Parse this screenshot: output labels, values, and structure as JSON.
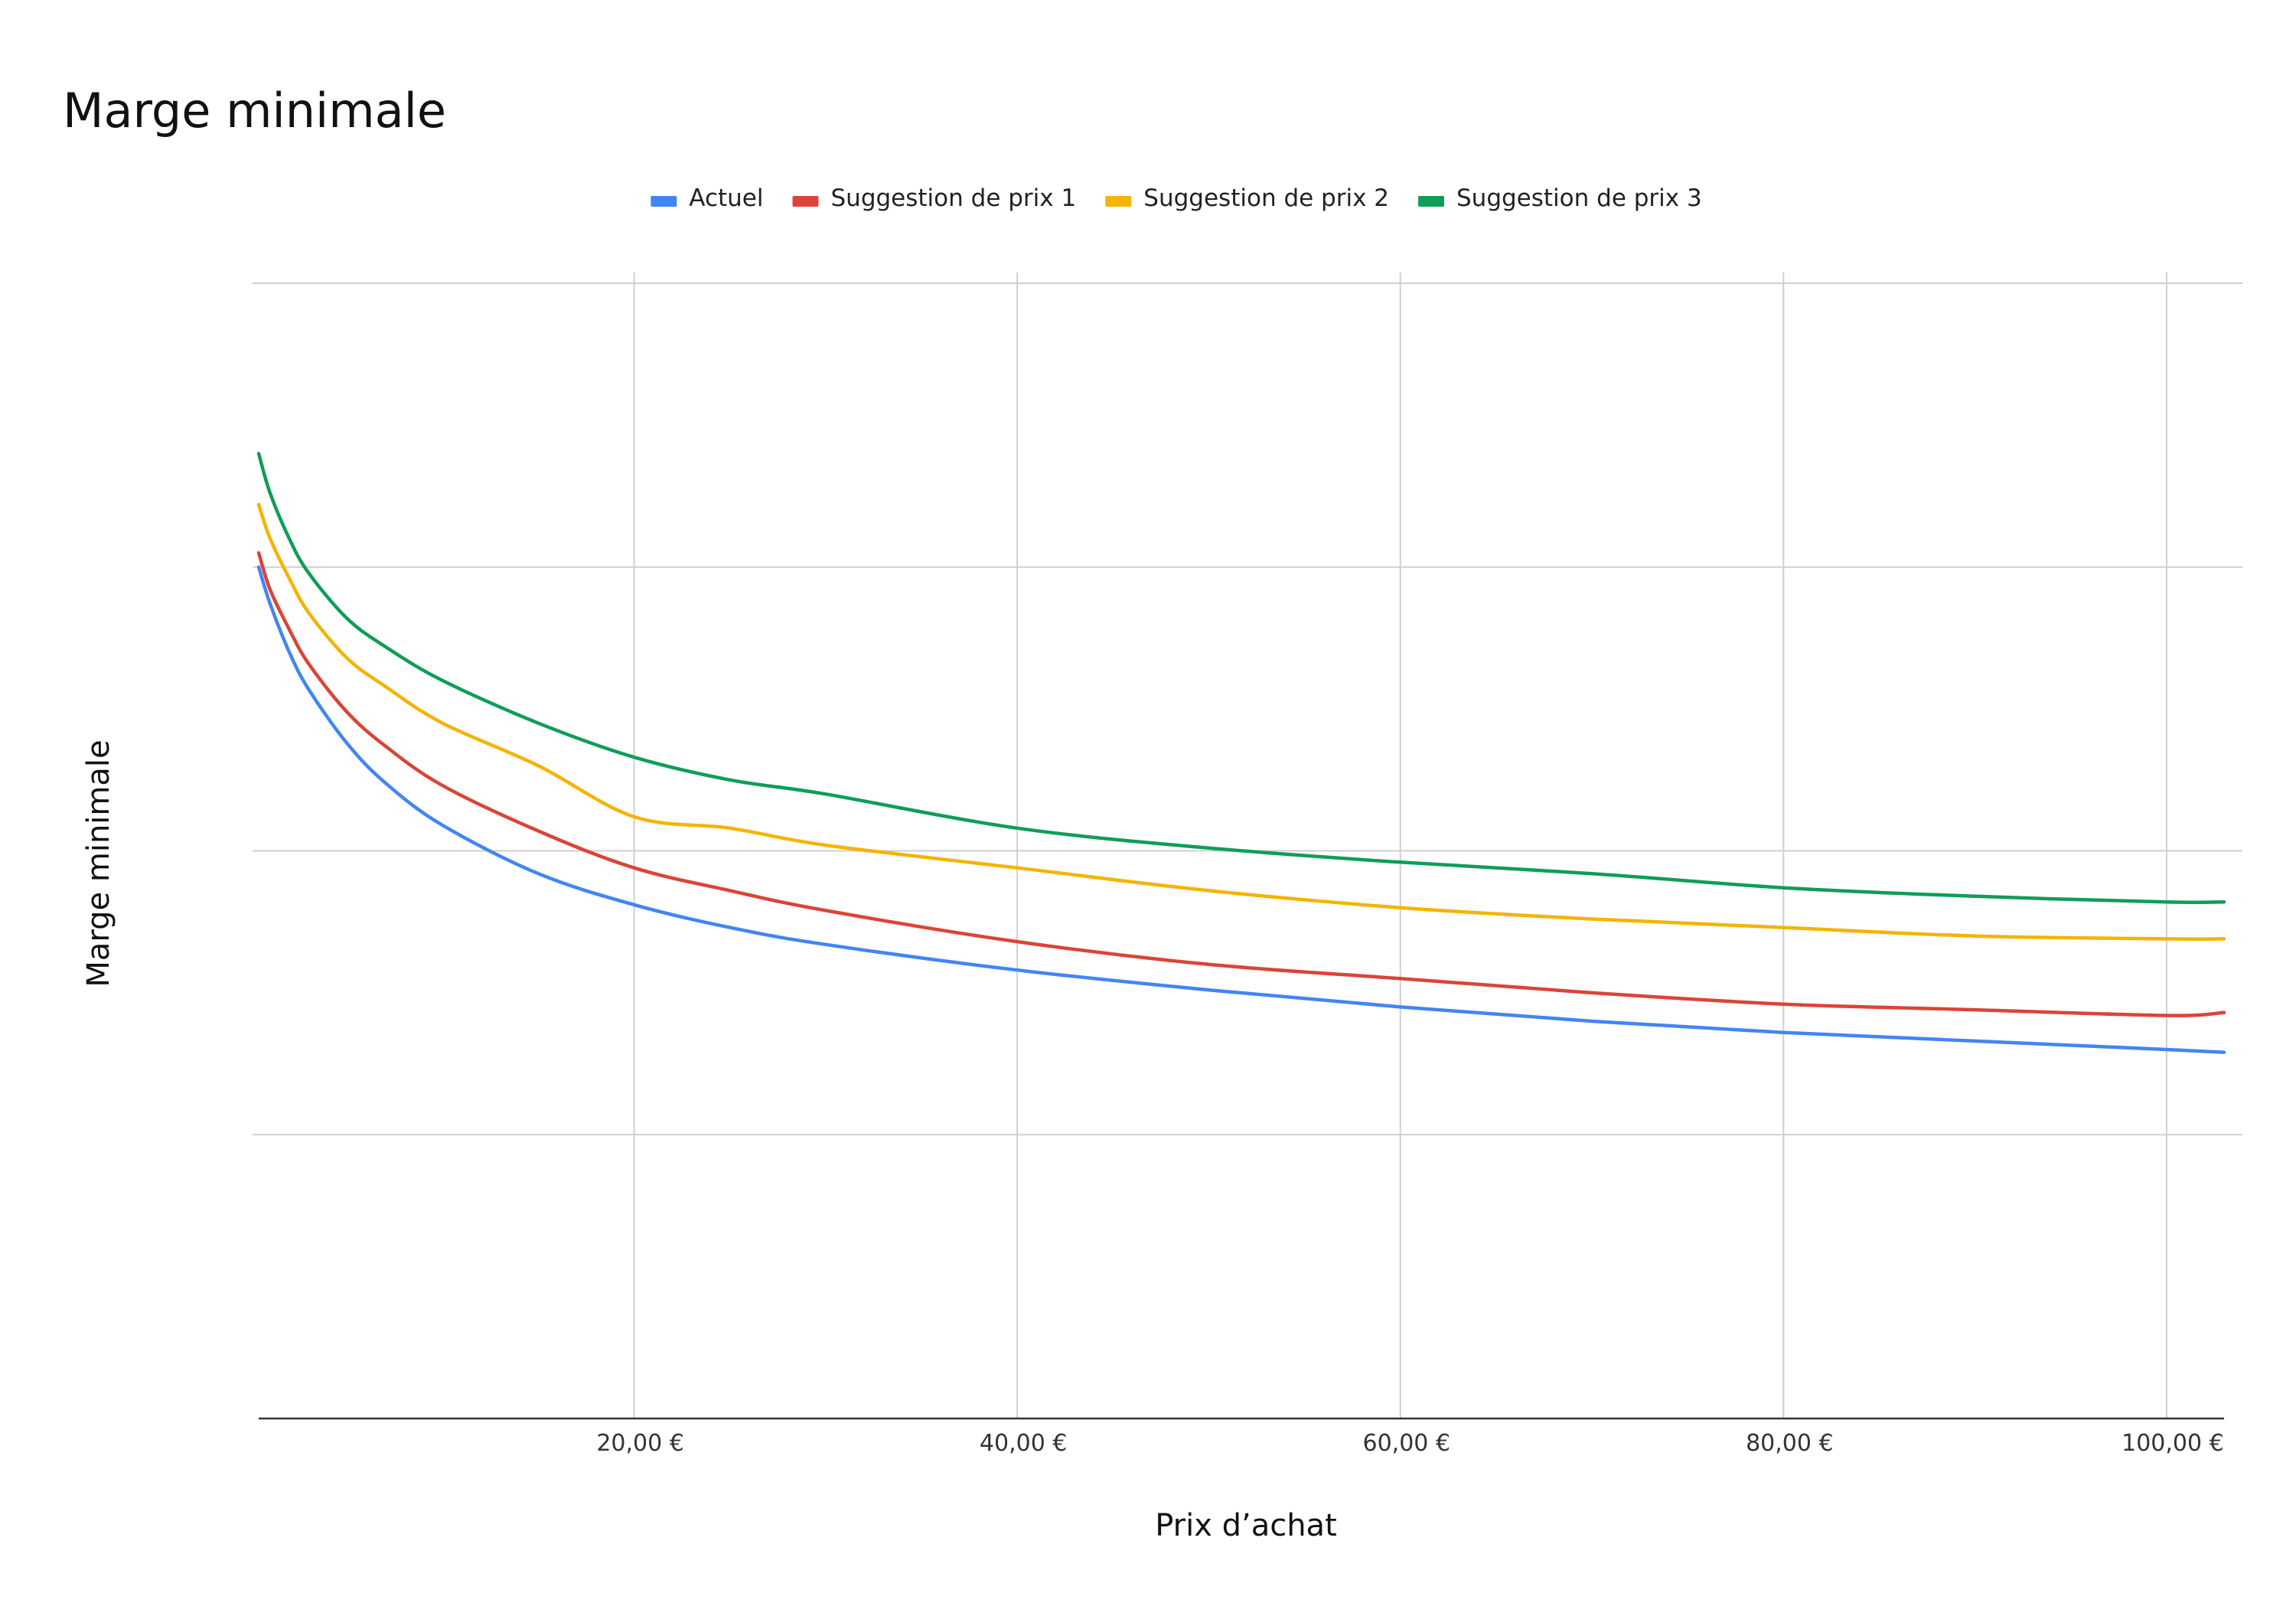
{
  "chart_data": {
    "type": "line",
    "title": "Marge minimale",
    "xlabel": "Prix d’achat",
    "ylabel": "Marge minimale",
    "x_tick_labels": [
      "20,00 €",
      "40,00 €",
      "60,00 €",
      "80,00 €",
      "100,00 €"
    ],
    "x_ticks": [
      20,
      40,
      60,
      80,
      100
    ],
    "xlim": [
      0.4,
      103
    ],
    "ylim": [
      0,
      4
    ],
    "y_gridlines": [
      1,
      2,
      3,
      4
    ],
    "y_tick_labels_shown": false,
    "grid": true,
    "legend_position": "top-center",
    "x": [
      0.4,
      1,
      2,
      3,
      5,
      7,
      10,
      15,
      20,
      25,
      30,
      40,
      50,
      60,
      70,
      80,
      90,
      100,
      103
    ],
    "series": [
      {
        "name": "Actuel",
        "color": "#4285F4",
        "values": [
          3.0,
          2.87,
          2.7,
          2.57,
          2.38,
          2.24,
          2.09,
          1.92,
          1.81,
          1.73,
          1.67,
          1.58,
          1.51,
          1.45,
          1.4,
          1.36,
          1.33,
          1.3,
          1.29
        ]
      },
      {
        "name": "Suggestion de prix 1",
        "color": "#DB4437",
        "values": [
          3.05,
          2.92,
          2.78,
          2.66,
          2.49,
          2.37,
          2.23,
          2.07,
          1.94,
          1.86,
          1.79,
          1.68,
          1.6,
          1.55,
          1.5,
          1.46,
          1.44,
          1.42,
          1.43
        ]
      },
      {
        "name": "Suggestion de prix 2",
        "color": "#F4B400",
        "values": [
          3.22,
          3.1,
          2.96,
          2.84,
          2.68,
          2.58,
          2.45,
          2.3,
          2.12,
          2.08,
          2.02,
          1.94,
          1.86,
          1.8,
          1.76,
          1.73,
          1.7,
          1.69,
          1.69
        ]
      },
      {
        "name": "Suggestion de prix 3",
        "color": "#0F9D58",
        "values": [
          3.4,
          3.26,
          3.1,
          2.98,
          2.82,
          2.72,
          2.6,
          2.45,
          2.33,
          2.25,
          2.2,
          2.08,
          2.01,
          1.96,
          1.92,
          1.87,
          1.84,
          1.82,
          1.82
        ]
      }
    ]
  }
}
